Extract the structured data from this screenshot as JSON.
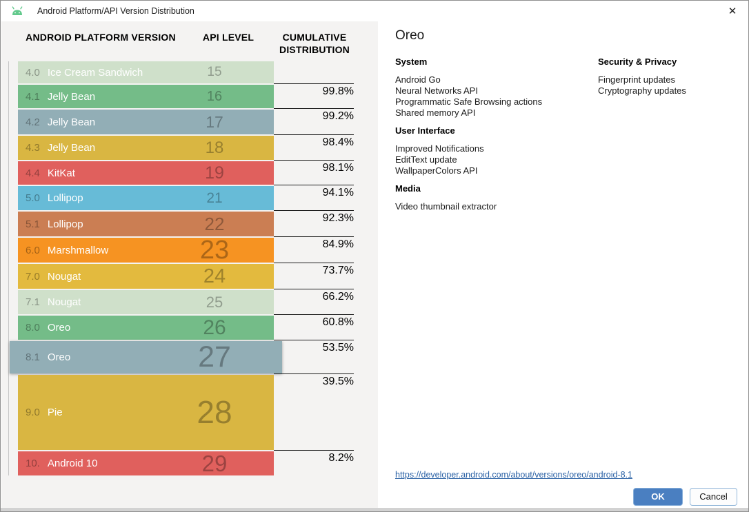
{
  "window": {
    "title": "Android Platform/API Version Distribution",
    "close_label": "✕"
  },
  "colors": {
    "accent_blue_button": "#4a7fc1",
    "link_blue": "#2a61a5",
    "android_green": "#62c98c"
  },
  "chart_data": {
    "type": "bar",
    "title": "Android Platform/API Version Distribution",
    "columns": [
      "ANDROID PLATFORM VERSION",
      "API LEVEL",
      "CUMULATIVE DISTRIBUTION"
    ],
    "legend_position": "none",
    "grid": false,
    "rows": [
      {
        "version": "4.0",
        "name": "Ice Cream Sandwich",
        "api": "15",
        "cumulative": null,
        "color": "#cfe0ca",
        "height": 32,
        "api_size": 19,
        "selected": false
      },
      {
        "version": "4.1",
        "name": "Jelly Bean",
        "api": "16",
        "cumulative": "99.8%",
        "color": "#74bc88",
        "height": 34,
        "api_size": 20,
        "selected": false
      },
      {
        "version": "4.2",
        "name": "Jelly Bean",
        "api": "17",
        "cumulative": "99.2%",
        "color": "#92aeb6",
        "height": 36,
        "api_size": 23,
        "selected": false
      },
      {
        "version": "4.3",
        "name": "Jelly Bean",
        "api": "18",
        "cumulative": "98.4%",
        "color": "#d9b642",
        "height": 35,
        "api_size": 24,
        "selected": false
      },
      {
        "version": "4.4",
        "name": "KitKat",
        "api": "19",
        "cumulative": "98.1%",
        "color": "#e0605d",
        "height": 34,
        "api_size": 25,
        "selected": false
      },
      {
        "version": "5.0",
        "name": "Lollipop",
        "api": "21",
        "cumulative": "94.1%",
        "color": "#67bbd7",
        "height": 35,
        "api_size": 21,
        "selected": false
      },
      {
        "version": "5.1",
        "name": "Lollipop",
        "api": "22",
        "cumulative": "92.3%",
        "color": "#cb7e53",
        "height": 36,
        "api_size": 26,
        "selected": false
      },
      {
        "version": "6.0",
        "name": "Marshmallow",
        "api": "23",
        "cumulative": "84.9%",
        "color": "#f69322",
        "height": 36,
        "api_size": 38,
        "selected": false
      },
      {
        "version": "7.0",
        "name": "Nougat",
        "api": "24",
        "cumulative": "73.7%",
        "color": "#e3ba3e",
        "height": 36,
        "api_size": 29,
        "selected": false
      },
      {
        "version": "7.1",
        "name": "Nougat",
        "api": "25",
        "cumulative": "66.2%",
        "color": "#cfe0ca",
        "height": 35,
        "api_size": 22,
        "selected": false
      },
      {
        "version": "8.0",
        "name": "Oreo",
        "api": "26",
        "cumulative": "60.8%",
        "color": "#74bc88",
        "height": 35,
        "api_size": 30,
        "selected": false
      },
      {
        "version": "8.1",
        "name": "Oreo",
        "api": "27",
        "cumulative": "53.5%",
        "color": "#92aeb6",
        "height": 47,
        "api_size": 43,
        "selected": true
      },
      {
        "version": "9.0",
        "name": "Pie",
        "api": "28",
        "cumulative": "39.5%",
        "color": "#d9b642",
        "height": 109,
        "api_size": 46,
        "selected": false
      },
      {
        "version": "10.",
        "name": "Android 10",
        "api": "29",
        "cumulative": "8.2%",
        "color": "#e0605d",
        "height": 35,
        "api_size": 33,
        "selected": false
      }
    ]
  },
  "details": {
    "title": "Oreo",
    "columns": [
      {
        "sections": [
          {
            "heading": "System",
            "items": [
              "Android Go",
              "Neural Networks API",
              "Programmatic Safe Browsing actions",
              "Shared memory API"
            ]
          },
          {
            "heading": "User Interface",
            "items": [
              "Improved Notifications",
              "EditText update",
              "WallpaperColors API"
            ]
          },
          {
            "heading": "Media",
            "items": [
              "Video thumbnail extractor"
            ]
          }
        ]
      },
      {
        "sections": [
          {
            "heading": "Security & Privacy",
            "items": [
              "Fingerprint updates",
              "Cryptography updates"
            ]
          }
        ]
      }
    ],
    "link": "https://developer.android.com/about/versions/oreo/android-8.1"
  },
  "buttons": {
    "ok": "OK",
    "cancel": "Cancel"
  }
}
